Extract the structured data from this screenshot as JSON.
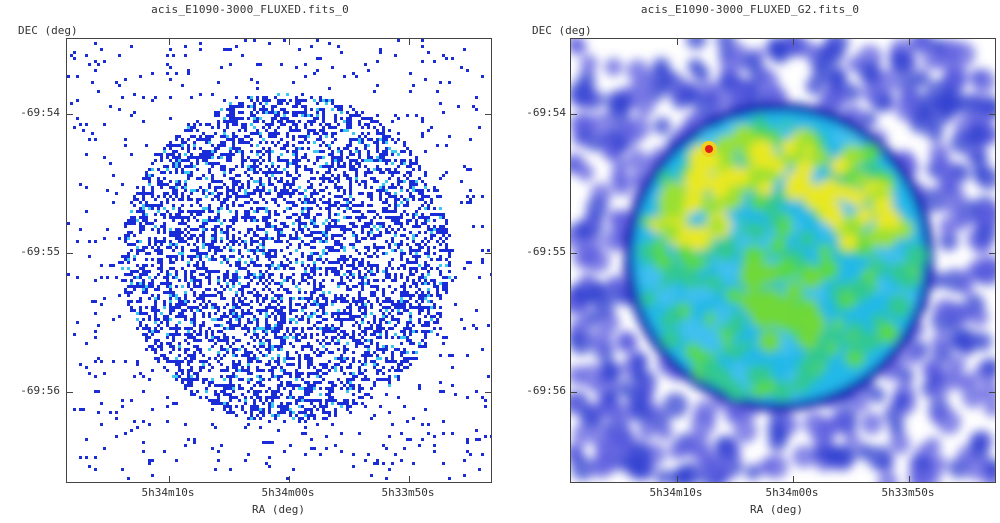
{
  "panels": [
    {
      "title": "acis_E1090-3000_FLUXED.fits_0",
      "ylabel": "DEC (deg)",
      "xlabel": "RA (deg)",
      "yticks": [
        "-69:54",
        "-69:55",
        "-69:56"
      ],
      "xticks": [
        "5h34m10s",
        "5h34m00s",
        "5h33m50s"
      ],
      "style": "counts"
    },
    {
      "title": "acis_E1090-3000_FLUXED_G2.fits_0",
      "ylabel": "DEC (deg)",
      "xlabel": "RA (deg)",
      "yticks": [
        "-69:54",
        "-69:55",
        "-69:56"
      ],
      "xticks": [
        "5h34m10s",
        "5h34m00s",
        "5h33m50s"
      ],
      "style": "smoothed"
    }
  ],
  "colors": {
    "blue": "#1a2bd8",
    "cyan": "#38c8f0",
    "green": "#3ad048",
    "yellow": "#e8e820",
    "red": "#e02010"
  }
}
